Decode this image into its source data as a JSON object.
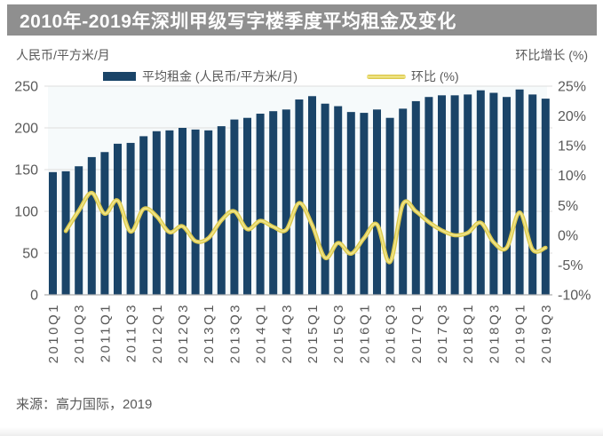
{
  "title": "2010年-2019年深圳甲级写字楼季度平均租金及变化",
  "left_axis_unit": "人民币/平方米/月",
  "right_axis_unit": "环比增长 (%)",
  "legend": {
    "rent_label": "平均租金 (人民币/平方米/月)",
    "qoq_label": "环比 (%)"
  },
  "source": "来源：高力国际，2019",
  "colors": {
    "title_bar_bg": "#8f8f8f",
    "title_text": "#ffffff",
    "bar": "#1a4468",
    "line": "#dcc94e",
    "line_highlight": "#f2e88e",
    "gridline": "#dedede",
    "baseline": "#aeaeae",
    "tick_text": "#595959",
    "plot_tint": "#eef6f8"
  },
  "chart_data": {
    "type": "bar",
    "subtype": "combo-bar-line-dual-axis",
    "title": "2010年-2019年深圳甲级写字楼季度平均租金及变化",
    "categories": [
      "2010Q1",
      "2010Q2",
      "2010Q3",
      "2010Q4",
      "2011Q1",
      "2011Q2",
      "2011Q3",
      "2011Q4",
      "2012Q1",
      "2012Q2",
      "2012Q3",
      "2012Q4",
      "2013Q1",
      "2013Q2",
      "2013Q3",
      "2013Q4",
      "2014Q1",
      "2014Q2",
      "2014Q3",
      "2014Q4",
      "2015Q1",
      "2015Q2",
      "2015Q3",
      "2015Q4",
      "2016Q1",
      "2016Q2",
      "2016Q3",
      "2016Q4",
      "2017Q1",
      "2017Q2",
      "2017Q3",
      "2017Q4",
      "2018Q1",
      "2018Q2",
      "2018Q3",
      "2018Q4",
      "2019Q1",
      "2019Q2",
      "2019Q3"
    ],
    "x_tick_labels": [
      "2010Q1",
      "2010Q3",
      "2011Q1",
      "2011Q3",
      "2012Q1",
      "2012Q3",
      "2013Q1",
      "2013Q3",
      "2014Q1",
      "2014Q3",
      "2015Q1",
      "2015Q3",
      "2016Q1",
      "2016Q3",
      "2017Q1",
      "2017Q3",
      "2018Q1",
      "2018Q3",
      "2019Q1",
      "2019Q3"
    ],
    "series": [
      {
        "name": "平均租金 (人民币/平方米/月)",
        "type": "bar",
        "axis": "left",
        "values": [
          147,
          148,
          154,
          165,
          171,
          181,
          182,
          190,
          196,
          197,
          200,
          198,
          197,
          202,
          210,
          212,
          217,
          220,
          222,
          234,
          238,
          229,
          226,
          219,
          218,
          222,
          212,
          223,
          232,
          237,
          239,
          239,
          240,
          245,
          242,
          237,
          246,
          240,
          235
        ]
      },
      {
        "name": "环比 (%)",
        "type": "line",
        "axis": "right",
        "values": [
          null,
          0.7,
          4.1,
          7.1,
          3.6,
          5.8,
          0.6,
          4.4,
          3.2,
          0.5,
          1.5,
          -1.0,
          -0.5,
          2.5,
          4.0,
          1.0,
          2.4,
          1.4,
          0.9,
          5.4,
          1.7,
          -3.8,
          -1.3,
          -3.1,
          -0.5,
          1.8,
          -4.5,
          5.2,
          4.0,
          2.2,
          0.8,
          0.0,
          0.4,
          2.1,
          -1.2,
          -2.1,
          3.8,
          -2.4,
          -2.1
        ]
      }
    ],
    "left_axis": {
      "title": "人民币/平方米/月",
      "min": 0,
      "max": 250,
      "step": 50,
      "tick_labels": [
        "0",
        "50",
        "100",
        "150",
        "200",
        "250"
      ]
    },
    "right_axis": {
      "title": "环比增长 (%)",
      "min": -10,
      "max": 25,
      "step": 5,
      "tick_labels": [
        "25%",
        "20%",
        "15%",
        "10%",
        "5%",
        "0%",
        "-5%",
        "-10%"
      ]
    },
    "grid": "horizontal-left-axis",
    "legend_position": "top"
  }
}
